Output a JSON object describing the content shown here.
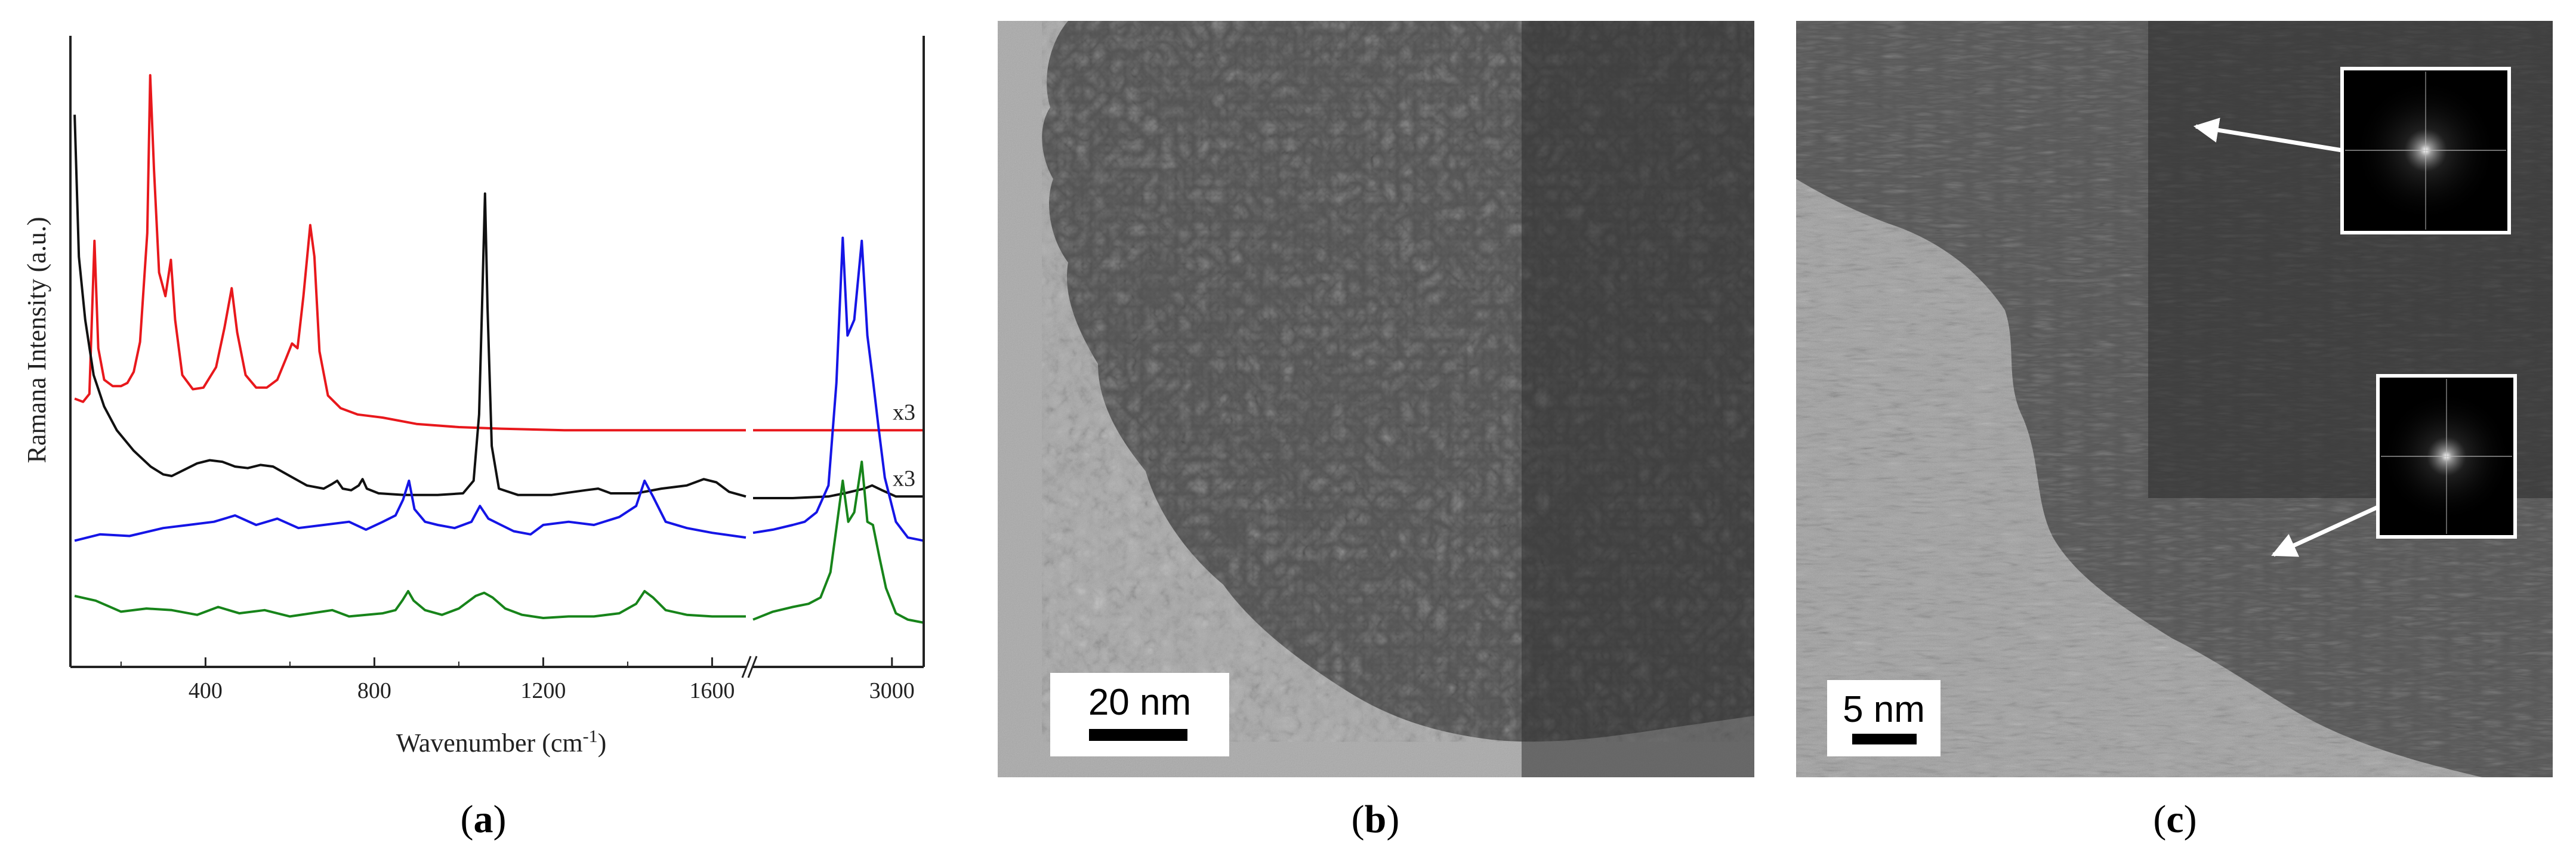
{
  "chart_data": {
    "type": "line",
    "xlabel": "Wavenumber (cm",
    "xlabel_superscript": "-1",
    "xlabel_suffix": ")",
    "ylabel": "Ramana Intensity (a.u.)",
    "x_axis_break": true,
    "x_segments": [
      {
        "xlim": [
          80,
          1680
        ],
        "ticks": [
          400,
          800,
          1200,
          1600
        ]
      },
      {
        "xlim": [
          2650,
          3080
        ],
        "ticks": [
          3000
        ]
      }
    ],
    "y_ticks_shown": false,
    "series": [
      {
        "color": "#e8181c",
        "multiplier": "x3",
        "points": [
          [
            90,
            0.9
          ],
          [
            110,
            0.88
          ],
          [
            125,
            0.93
          ],
          [
            137,
            1.9
          ],
          [
            146,
            1.22
          ],
          [
            160,
            1.02
          ],
          [
            180,
            0.98
          ],
          [
            200,
            0.98
          ],
          [
            215,
            1.0
          ],
          [
            230,
            1.07
          ],
          [
            245,
            1.26
          ],
          [
            262,
            1.95
          ],
          [
            269,
            2.95
          ],
          [
            278,
            2.35
          ],
          [
            290,
            1.7
          ],
          [
            305,
            1.55
          ],
          [
            318,
            1.78
          ],
          [
            328,
            1.4
          ],
          [
            345,
            1.05
          ],
          [
            370,
            0.96
          ],
          [
            395,
            0.97
          ],
          [
            425,
            1.1
          ],
          [
            445,
            1.35
          ],
          [
            462,
            1.6
          ],
          [
            475,
            1.32
          ],
          [
            495,
            1.05
          ],
          [
            520,
            0.97
          ],
          [
            545,
            0.97
          ],
          [
            570,
            1.02
          ],
          [
            590,
            1.15
          ],
          [
            605,
            1.25
          ],
          [
            618,
            1.22
          ],
          [
            632,
            1.55
          ],
          [
            648,
            2.0
          ],
          [
            658,
            1.8
          ],
          [
            670,
            1.2
          ],
          [
            690,
            0.92
          ],
          [
            720,
            0.84
          ],
          [
            760,
            0.8
          ],
          [
            820,
            0.78
          ],
          [
            900,
            0.74
          ],
          [
            1000,
            0.72
          ],
          [
            1100,
            0.71
          ],
          [
            1250,
            0.7
          ],
          [
            1400,
            0.7
          ],
          [
            1550,
            0.7
          ],
          [
            1680,
            0.7
          ],
          [
            2650,
            0.7
          ],
          [
            2800,
            0.7
          ],
          [
            2950,
            0.7
          ],
          [
            3080,
            0.7
          ]
        ]
      },
      {
        "color": "#111111",
        "multiplier": "x3",
        "points": [
          [
            90,
            2.7
          ],
          [
            100,
            1.8
          ],
          [
            115,
            1.4
          ],
          [
            135,
            1.05
          ],
          [
            160,
            0.85
          ],
          [
            190,
            0.7
          ],
          [
            230,
            0.57
          ],
          [
            270,
            0.47
          ],
          [
            300,
            0.42
          ],
          [
            320,
            0.41
          ],
          [
            350,
            0.45
          ],
          [
            380,
            0.49
          ],
          [
            410,
            0.51
          ],
          [
            440,
            0.5
          ],
          [
            470,
            0.47
          ],
          [
            500,
            0.46
          ],
          [
            530,
            0.48
          ],
          [
            560,
            0.47
          ],
          [
            600,
            0.41
          ],
          [
            640,
            0.35
          ],
          [
            680,
            0.33
          ],
          [
            700,
            0.36
          ],
          [
            712,
            0.38
          ],
          [
            725,
            0.33
          ],
          [
            745,
            0.32
          ],
          [
            763,
            0.35
          ],
          [
            772,
            0.39
          ],
          [
            782,
            0.33
          ],
          [
            810,
            0.3
          ],
          [
            870,
            0.29
          ],
          [
            950,
            0.29
          ],
          [
            1010,
            0.3
          ],
          [
            1035,
            0.38
          ],
          [
            1048,
            0.8
          ],
          [
            1055,
            1.48
          ],
          [
            1062,
            2.2
          ],
          [
            1068,
            1.48
          ],
          [
            1078,
            0.6
          ],
          [
            1095,
            0.33
          ],
          [
            1140,
            0.29
          ],
          [
            1220,
            0.29
          ],
          [
            1300,
            0.32
          ],
          [
            1330,
            0.33
          ],
          [
            1360,
            0.3
          ],
          [
            1420,
            0.3
          ],
          [
            1480,
            0.33
          ],
          [
            1540,
            0.35
          ],
          [
            1580,
            0.39
          ],
          [
            1610,
            0.37
          ],
          [
            1640,
            0.31
          ],
          [
            1680,
            0.28
          ],
          [
            2650,
            0.27
          ],
          [
            2750,
            0.27
          ],
          [
            2840,
            0.28
          ],
          [
            2880,
            0.3
          ],
          [
            2930,
            0.33
          ],
          [
            2950,
            0.35
          ],
          [
            2975,
            0.32
          ],
          [
            3010,
            0.28
          ],
          [
            3080,
            0.28
          ]
        ]
      },
      {
        "color": "#1515e6",
        "points": [
          [
            90,
            0.0
          ],
          [
            150,
            0.04
          ],
          [
            220,
            0.03
          ],
          [
            300,
            0.08
          ],
          [
            360,
            0.1
          ],
          [
            420,
            0.12
          ],
          [
            470,
            0.16
          ],
          [
            520,
            0.1
          ],
          [
            570,
            0.14
          ],
          [
            620,
            0.08
          ],
          [
            680,
            0.1
          ],
          [
            740,
            0.12
          ],
          [
            780,
            0.07
          ],
          [
            820,
            0.12
          ],
          [
            850,
            0.16
          ],
          [
            868,
            0.26
          ],
          [
            882,
            0.38
          ],
          [
            895,
            0.2
          ],
          [
            920,
            0.12
          ],
          [
            950,
            0.1
          ],
          [
            990,
            0.08
          ],
          [
            1030,
            0.12
          ],
          [
            1050,
            0.22
          ],
          [
            1070,
            0.14
          ],
          [
            1100,
            0.1
          ],
          [
            1130,
            0.06
          ],
          [
            1170,
            0.04
          ],
          [
            1200,
            0.1
          ],
          [
            1260,
            0.12
          ],
          [
            1320,
            0.1
          ],
          [
            1380,
            0.15
          ],
          [
            1420,
            0.22
          ],
          [
            1440,
            0.38
          ],
          [
            1460,
            0.28
          ],
          [
            1490,
            0.12
          ],
          [
            1540,
            0.08
          ],
          [
            1600,
            0.05
          ],
          [
            1680,
            0.02
          ],
          [
            2650,
            0.05
          ],
          [
            2700,
            0.07
          ],
          [
            2750,
            0.1
          ],
          [
            2780,
            0.12
          ],
          [
            2810,
            0.18
          ],
          [
            2840,
            0.35
          ],
          [
            2860,
            1.0
          ],
          [
            2876,
            1.92
          ],
          [
            2888,
            1.3
          ],
          [
            2905,
            1.4
          ],
          [
            2924,
            1.9
          ],
          [
            2938,
            1.3
          ],
          [
            2952,
            1.02
          ],
          [
            2966,
            0.72
          ],
          [
            2982,
            0.4
          ],
          [
            3010,
            0.12
          ],
          [
            3040,
            0.02
          ],
          [
            3080,
            0.0
          ]
        ]
      },
      {
        "color": "#17841a",
        "points": [
          [
            90,
            -0.35
          ],
          [
            140,
            -0.38
          ],
          [
            200,
            -0.45
          ],
          [
            260,
            -0.43
          ],
          [
            320,
            -0.44
          ],
          [
            380,
            -0.47
          ],
          [
            430,
            -0.42
          ],
          [
            480,
            -0.46
          ],
          [
            540,
            -0.44
          ],
          [
            600,
            -0.48
          ],
          [
            650,
            -0.46
          ],
          [
            700,
            -0.44
          ],
          [
            740,
            -0.48
          ],
          [
            780,
            -0.47
          ],
          [
            820,
            -0.46
          ],
          [
            850,
            -0.44
          ],
          [
            866,
            -0.38
          ],
          [
            880,
            -0.32
          ],
          [
            893,
            -0.38
          ],
          [
            920,
            -0.44
          ],
          [
            960,
            -0.47
          ],
          [
            1000,
            -0.43
          ],
          [
            1040,
            -0.35
          ],
          [
            1060,
            -0.33
          ],
          [
            1080,
            -0.36
          ],
          [
            1110,
            -0.43
          ],
          [
            1150,
            -0.47
          ],
          [
            1200,
            -0.49
          ],
          [
            1260,
            -0.48
          ],
          [
            1320,
            -0.48
          ],
          [
            1380,
            -0.46
          ],
          [
            1420,
            -0.4
          ],
          [
            1440,
            -0.32
          ],
          [
            1460,
            -0.36
          ],
          [
            1490,
            -0.44
          ],
          [
            1540,
            -0.47
          ],
          [
            1600,
            -0.48
          ],
          [
            1680,
            -0.48
          ],
          [
            2650,
            -0.5
          ],
          [
            2700,
            -0.45
          ],
          [
            2750,
            -0.42
          ],
          [
            2790,
            -0.4
          ],
          [
            2820,
            -0.36
          ],
          [
            2845,
            -0.2
          ],
          [
            2860,
            0.08
          ],
          [
            2876,
            0.38
          ],
          [
            2890,
            0.12
          ],
          [
            2905,
            0.18
          ],
          [
            2924,
            0.5
          ],
          [
            2938,
            0.12
          ],
          [
            2952,
            0.1
          ],
          [
            2968,
            -0.1
          ],
          [
            2985,
            -0.3
          ],
          [
            3010,
            -0.46
          ],
          [
            3040,
            -0.5
          ],
          [
            3080,
            -0.52
          ]
        ]
      }
    ]
  },
  "panels": {
    "a_label": "a",
    "b_label": "b",
    "c_label": "c"
  },
  "scale_bars": {
    "b": "20 nm",
    "c": "5 nm"
  },
  "colors": {
    "tem_background": "#a8a8a8",
    "tem_particle": "#4a4a4a",
    "inset_frame": "#ffffff",
    "arrow": "#ffffff"
  }
}
